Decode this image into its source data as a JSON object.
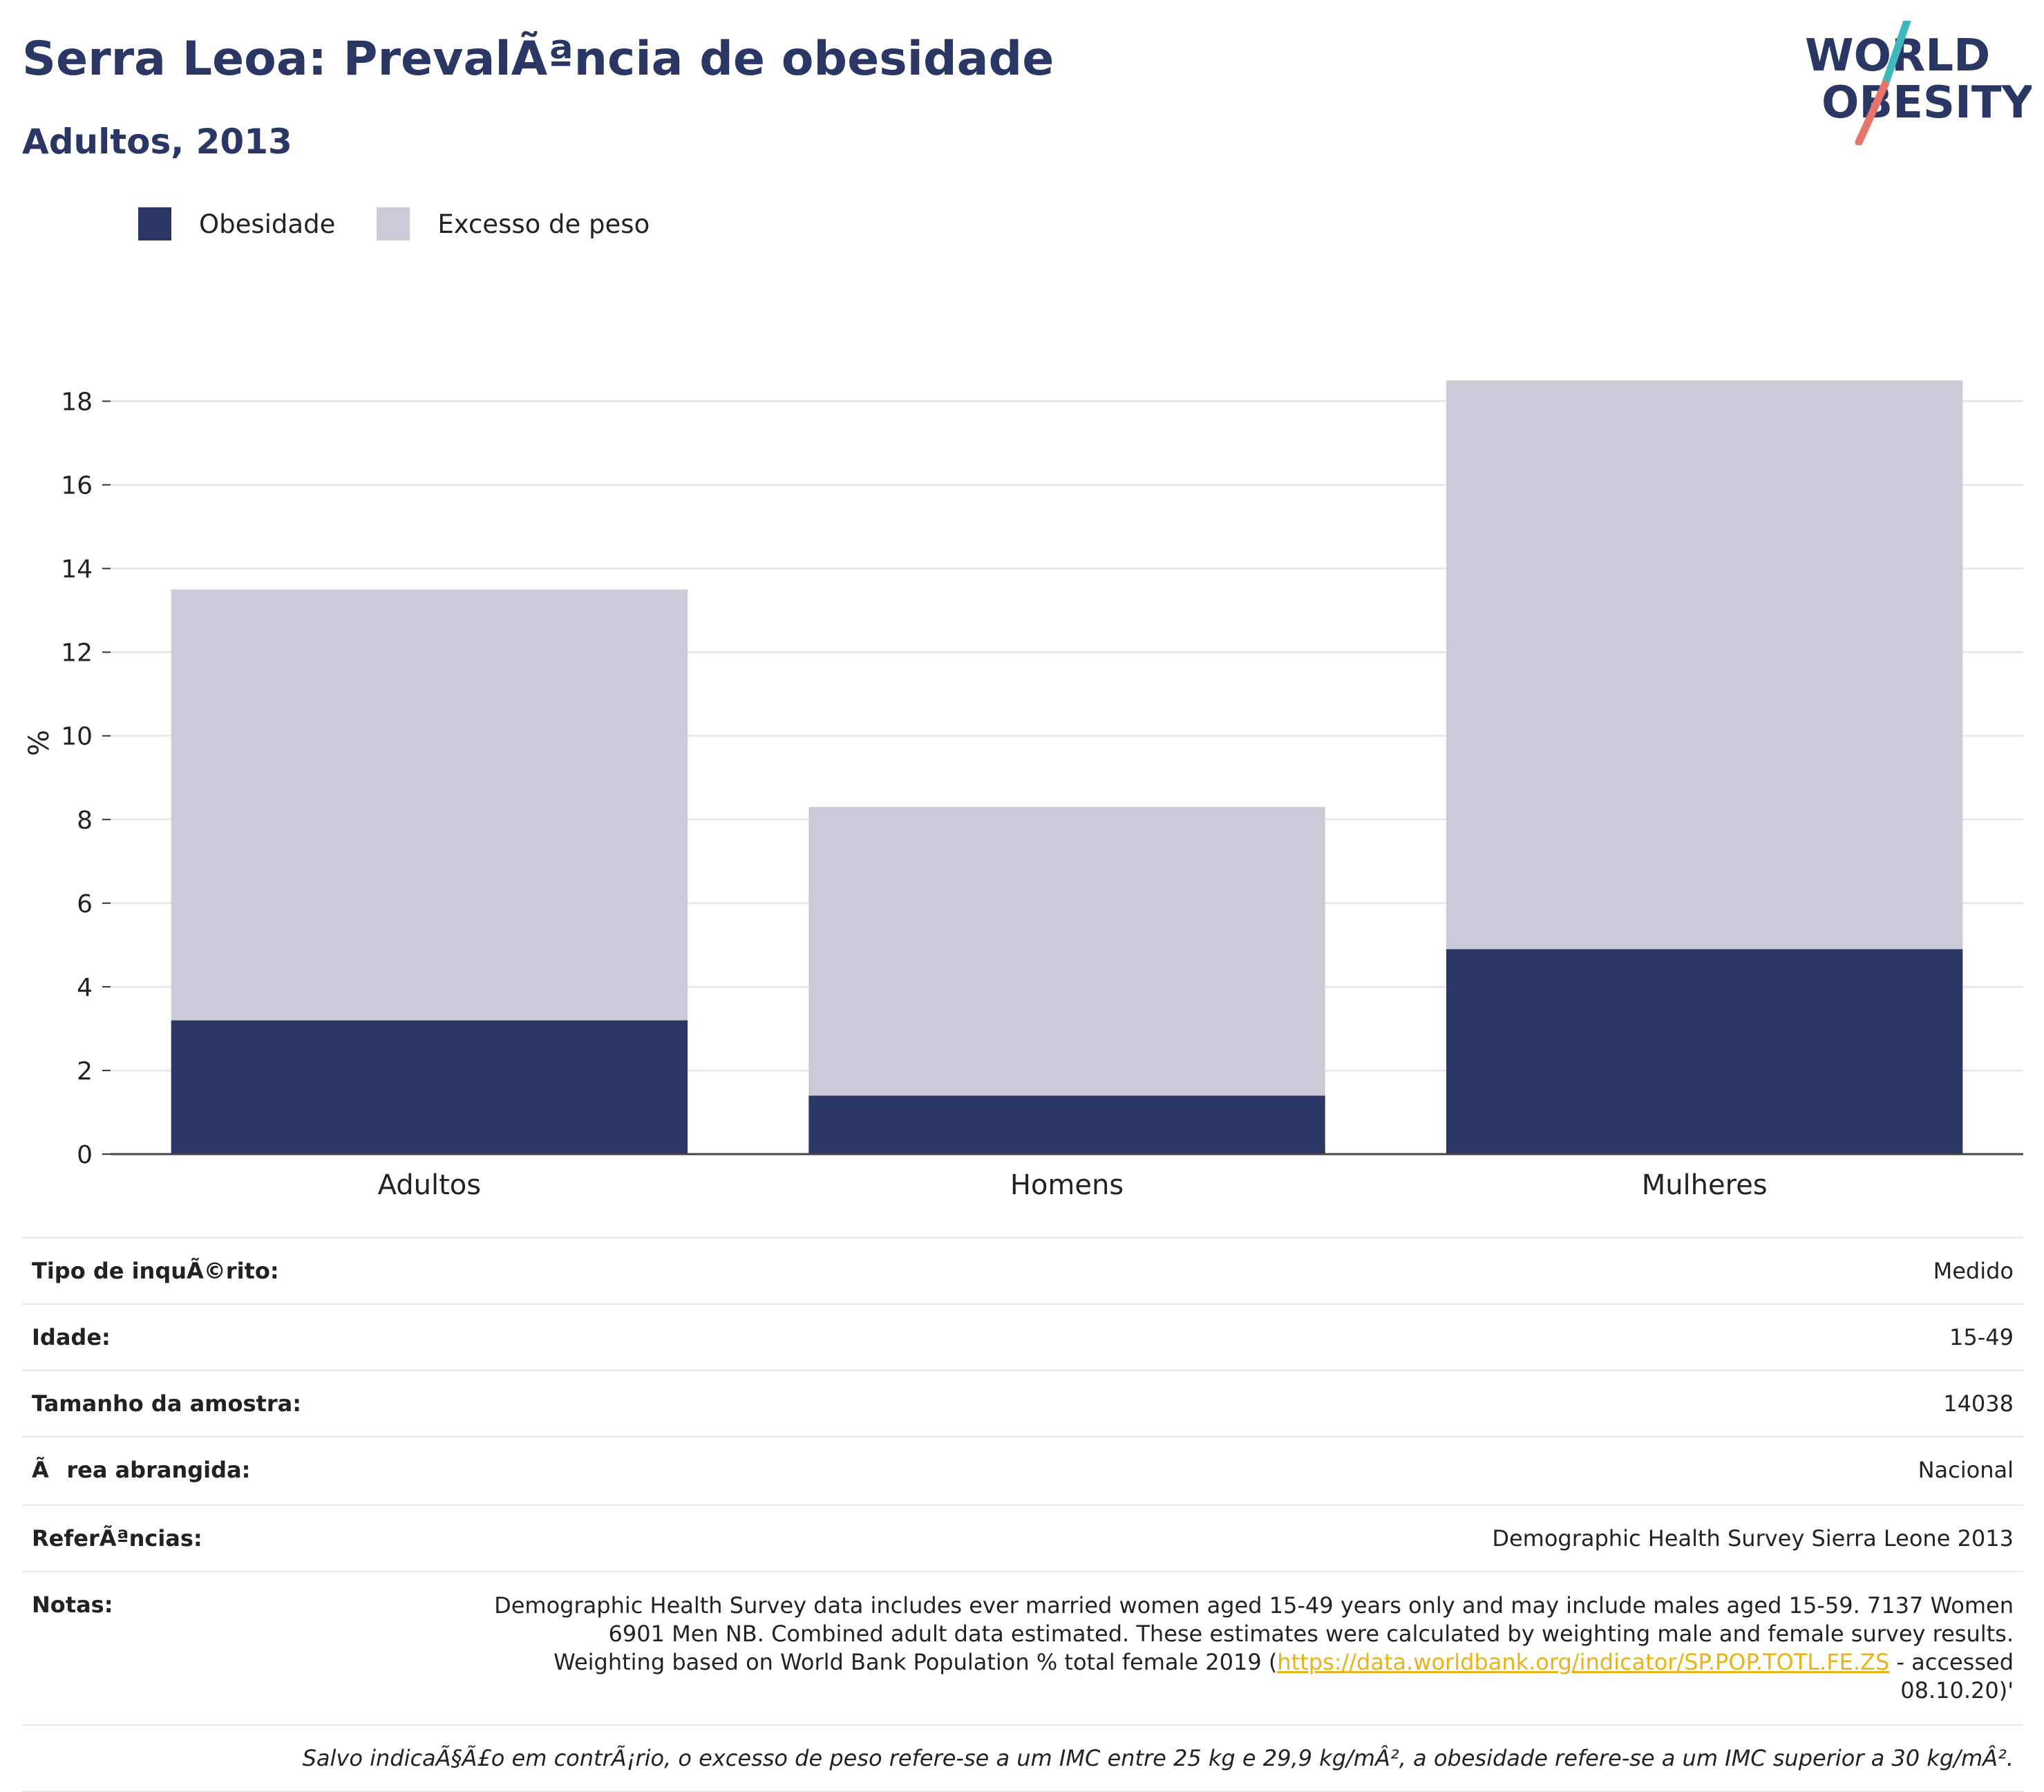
{
  "header": {
    "title": "Serra Leoa: PrevalÃªncia de obesidade",
    "subtitle": "Adultos, 2013"
  },
  "logo": {
    "line1": "WORLD",
    "line2": "OBESITY",
    "colors": [
      "#2a3663",
      "#e8736b",
      "#3fb8bd"
    ]
  },
  "colors": {
    "obesity": "#2a3663",
    "overweight": "#cacbd6",
    "text": "#2a3663",
    "link": "#e8b31a"
  },
  "legend": [
    {
      "label": "Obesidade",
      "color": "#2a3663"
    },
    {
      "label": "Excesso de peso",
      "color": "#cacbd6"
    }
  ],
  "chart_data": {
    "type": "bar",
    "stacked": true,
    "categories": [
      "Adultos",
      "Homens",
      "Mulheres"
    ],
    "series": [
      {
        "name": "Obesidade",
        "values": [
          3.2,
          1.4,
          4.9
        ]
      },
      {
        "name": "Excesso de peso",
        "values": [
          10.3,
          6.9,
          13.6
        ]
      }
    ],
    "ylabel": "%",
    "ylim": [
      0,
      19
    ],
    "yticks": [
      0,
      2,
      4,
      6,
      8,
      10,
      12,
      14,
      16,
      18
    ],
    "grid": true,
    "legend_position": "top-left"
  },
  "info": {
    "survey_type": {
      "label": "Tipo de inquÃ©rito:",
      "value": "Medido"
    },
    "age": {
      "label": "Idade:",
      "value": "15-49"
    },
    "sample_size": {
      "label": "Tamanho da amostra:",
      "value": "14038"
    },
    "area": {
      "label": "Ãrea abrangida:",
      "value": "Nacional"
    },
    "references": {
      "label": "ReferÃªncias:",
      "value": "Demographic Health Survey Sierra Leone 2013"
    },
    "notes": {
      "label": "Notas:",
      "text_before": "Demographic Health Survey data includes ever married women aged 15-49 years only and may include males aged 15-59. 7137 Women 6901 Men NB. Combined adult data estimated. These estimates were calculated by weighting male and female survey results. Weighting based on World Bank Population % total female 2019 (",
      "link": "https://data.worldbank.org/indicator/SP.POP.TOTL.FE.ZS",
      "text_after": " - accessed 08.10.20)'"
    },
    "footnote": "Salvo indicaÃ§Ã£o em contrÃ¡rio, o excesso de peso refere-se a um IMC entre 25 kg e 29,9 kg/mÂ², a obesidade refere-se a um IMC superior a 30 kg/mÂ²."
  }
}
